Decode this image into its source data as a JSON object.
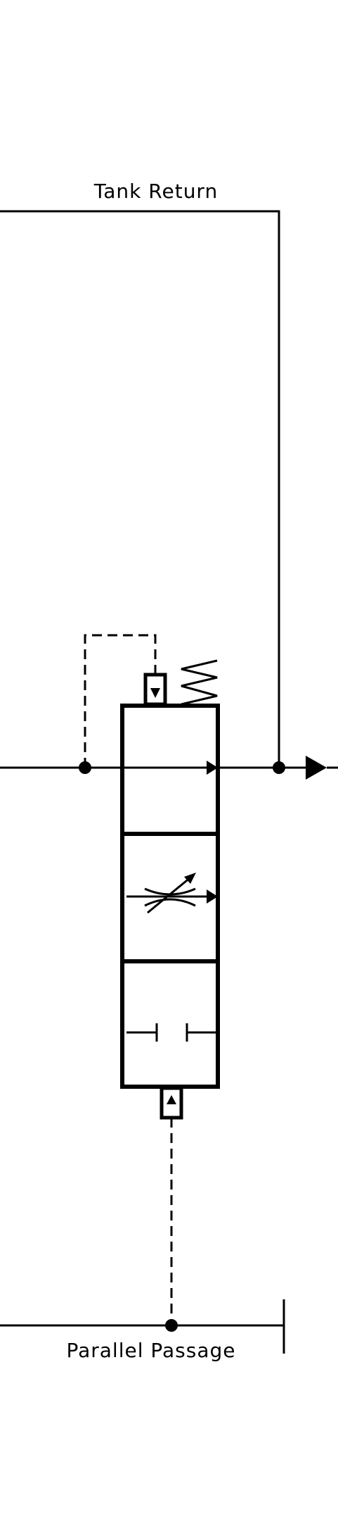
{
  "labels": {
    "tank_return": "Tank Return",
    "parallel_passage": "Parallel Passage"
  },
  "colors": {
    "line": "#000000",
    "background": "#ffffff"
  },
  "valve": {
    "positions": [
      "flow-through",
      "variable-throttle",
      "blocked"
    ]
  }
}
